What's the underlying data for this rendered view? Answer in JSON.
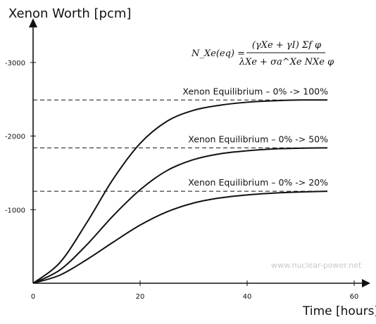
{
  "chart_data": {
    "type": "line",
    "title": "",
    "ylabel": "Xenon Worth [pcm]",
    "xlabel": "Time [hours]",
    "x_ticks": [
      0,
      20,
      40,
      60
    ],
    "x_tick_labels": [
      "0",
      "20",
      "40",
      "60"
    ],
    "y_ticks": [
      -1000,
      -2000,
      -3000
    ],
    "y_tick_labels": [
      "-1000",
      "-2000",
      "-3000"
    ],
    "xlim": [
      0,
      65
    ],
    "ylim": [
      0,
      -3000
    ],
    "grid": false,
    "series": [
      {
        "name": "Xenon Equilibrium – 0% -> 100%",
        "equilibrium": -2490,
        "x": [
          0,
          5,
          10,
          15,
          20,
          25,
          30,
          35,
          40,
          45,
          50,
          55
        ],
        "y": [
          0,
          -280,
          -820,
          -1420,
          -1900,
          -2200,
          -2350,
          -2420,
          -2460,
          -2480,
          -2490,
          -2490
        ]
      },
      {
        "name": "Xenon Equilibrium – 0% -> 50%",
        "equilibrium": -1840,
        "x": [
          0,
          5,
          10,
          15,
          20,
          25,
          30,
          35,
          40,
          45,
          50,
          55
        ],
        "y": [
          0,
          -180,
          -520,
          -920,
          -1270,
          -1530,
          -1680,
          -1760,
          -1800,
          -1825,
          -1835,
          -1840
        ]
      },
      {
        "name": "Xenon Equilibrium – 0% -> 20%",
        "equilibrium": -1250,
        "x": [
          0,
          5,
          10,
          15,
          20,
          25,
          30,
          35,
          40,
          45,
          50,
          55
        ],
        "y": [
          0,
          -110,
          -320,
          -560,
          -790,
          -970,
          -1090,
          -1160,
          -1200,
          -1225,
          -1240,
          -1250
        ]
      }
    ],
    "equation": {
      "lhs": "N_Xe(eq) =",
      "numerator": "(γXe + γI) Σf φ",
      "denominator": "λXe + σa^Xe NXe φ"
    },
    "watermark": "www.nuclear-power.net"
  }
}
